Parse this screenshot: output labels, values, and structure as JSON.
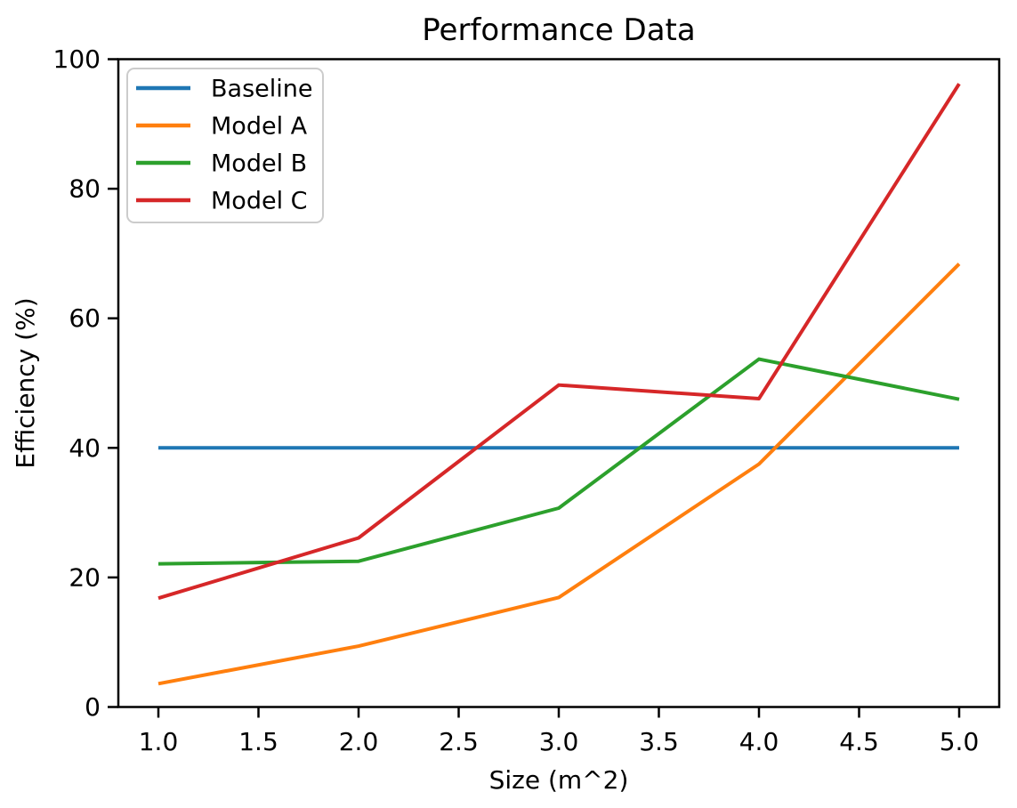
{
  "chart_data": {
    "type": "line",
    "title": "Performance Data",
    "xlabel": "Size (m^2)",
    "ylabel": "Efficiency (%)",
    "x": [
      1.0,
      2.0,
      3.0,
      4.0,
      5.0
    ],
    "series": [
      {
        "name": "Baseline",
        "color": "#1f77b4",
        "values": [
          40.0,
          40.0,
          40.0,
          40.0,
          40.0
        ]
      },
      {
        "name": "Model A",
        "color": "#ff7f0e",
        "values": [
          3.6,
          9.4,
          16.9,
          37.5,
          68.4
        ]
      },
      {
        "name": "Model B",
        "color": "#2ca02c",
        "values": [
          22.1,
          22.5,
          30.7,
          53.7,
          47.5
        ]
      },
      {
        "name": "Model C",
        "color": "#d62728",
        "values": [
          16.8,
          26.1,
          49.7,
          47.6,
          96.2
        ]
      }
    ],
    "xlim": [
      0.8,
      5.2
    ],
    "ylim": [
      0,
      100
    ],
    "xticks": {
      "values": [
        1.0,
        1.5,
        2.0,
        2.5,
        3.0,
        3.5,
        4.0,
        4.5,
        5.0
      ],
      "labels": [
        "1.0",
        "1.5",
        "2.0",
        "2.5",
        "3.0",
        "3.5",
        "4.0",
        "4.5",
        "5.0"
      ]
    },
    "yticks": {
      "values": [
        0,
        20,
        40,
        60,
        80,
        100
      ],
      "labels": [
        "0",
        "20",
        "40",
        "60",
        "80",
        "100"
      ]
    },
    "legend": {
      "position": "upper-left"
    },
    "grid": false,
    "colors": {
      "spine": "#000000",
      "tick": "#000000",
      "text": "#000000",
      "legend_border": "#cccccc",
      "background": "#ffffff"
    }
  }
}
